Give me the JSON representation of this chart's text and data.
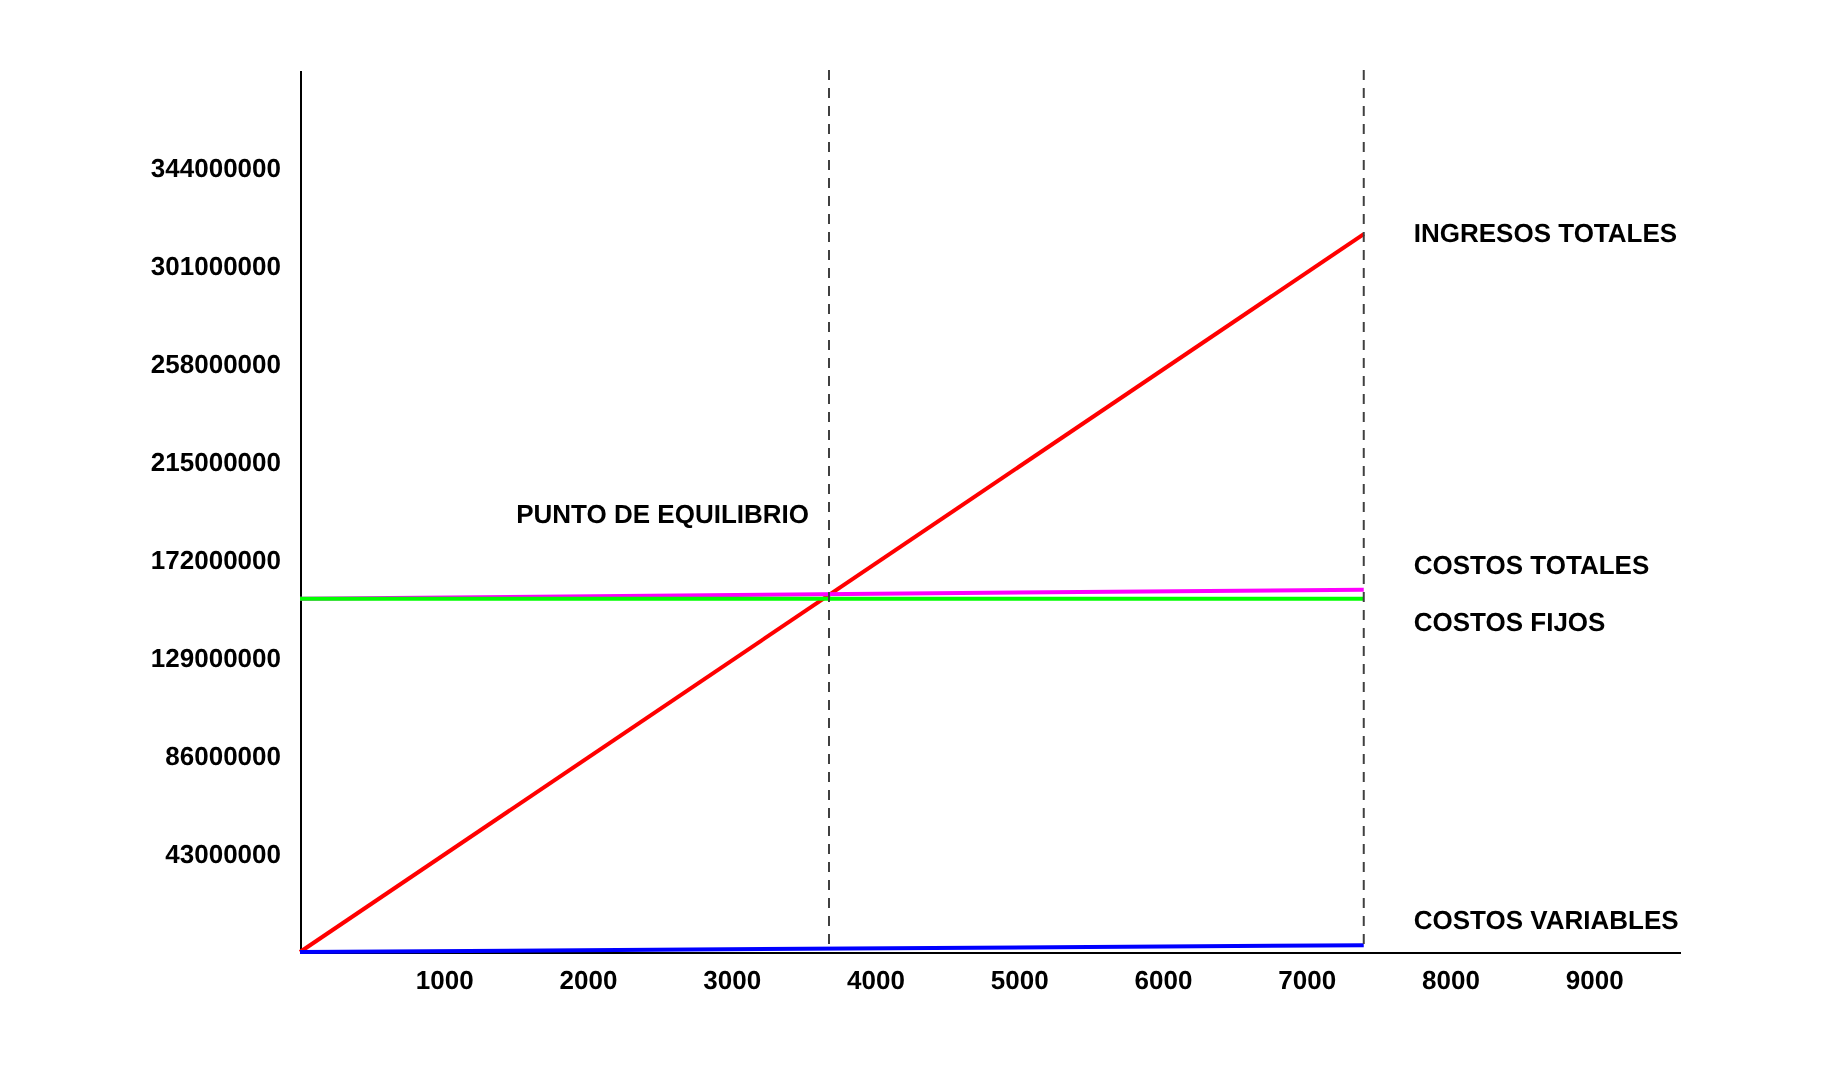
{
  "chart_data": {
    "type": "line",
    "x": [
      0,
      7400
    ],
    "series": [
      {
        "name": "INGRESOS TOTALES",
        "color": "#ff0000",
        "values": [
          0,
          315000000
        ]
      },
      {
        "name": "COSTOS TOTALES",
        "color": "#ff00ff",
        "values": [
          155000000,
          159000000
        ]
      },
      {
        "name": "COSTOS FIJOS",
        "color": "#00ff00",
        "values": [
          155000000,
          155000000
        ]
      },
      {
        "name": "COSTOS VARIABLES",
        "color": "#0000ff",
        "values": [
          0,
          3000000
        ]
      }
    ],
    "xlim": [
      0,
      9600
    ],
    "xticks": [
      1000,
      2000,
      3000,
      4000,
      5000,
      6000,
      7000,
      8000,
      9000
    ],
    "ylim": [
      0,
      387000000
    ],
    "yticks": [
      43000000,
      86000000,
      129000000,
      172000000,
      215000000,
      258000000,
      301000000,
      344000000
    ],
    "ref_lines": [
      {
        "axis": "x",
        "value": 3680,
        "line_style": "dashed",
        "color": "#404040"
      },
      {
        "axis": "x",
        "value": 7400,
        "line_style": "dashed",
        "color": "#404040"
      }
    ],
    "annotations": [
      {
        "text": "PUNTO DE EQUILIBRIO",
        "x": 3680,
        "y": 156700000
      }
    ],
    "grid": false,
    "legend": false,
    "marker": "none",
    "line_style": "solid"
  }
}
